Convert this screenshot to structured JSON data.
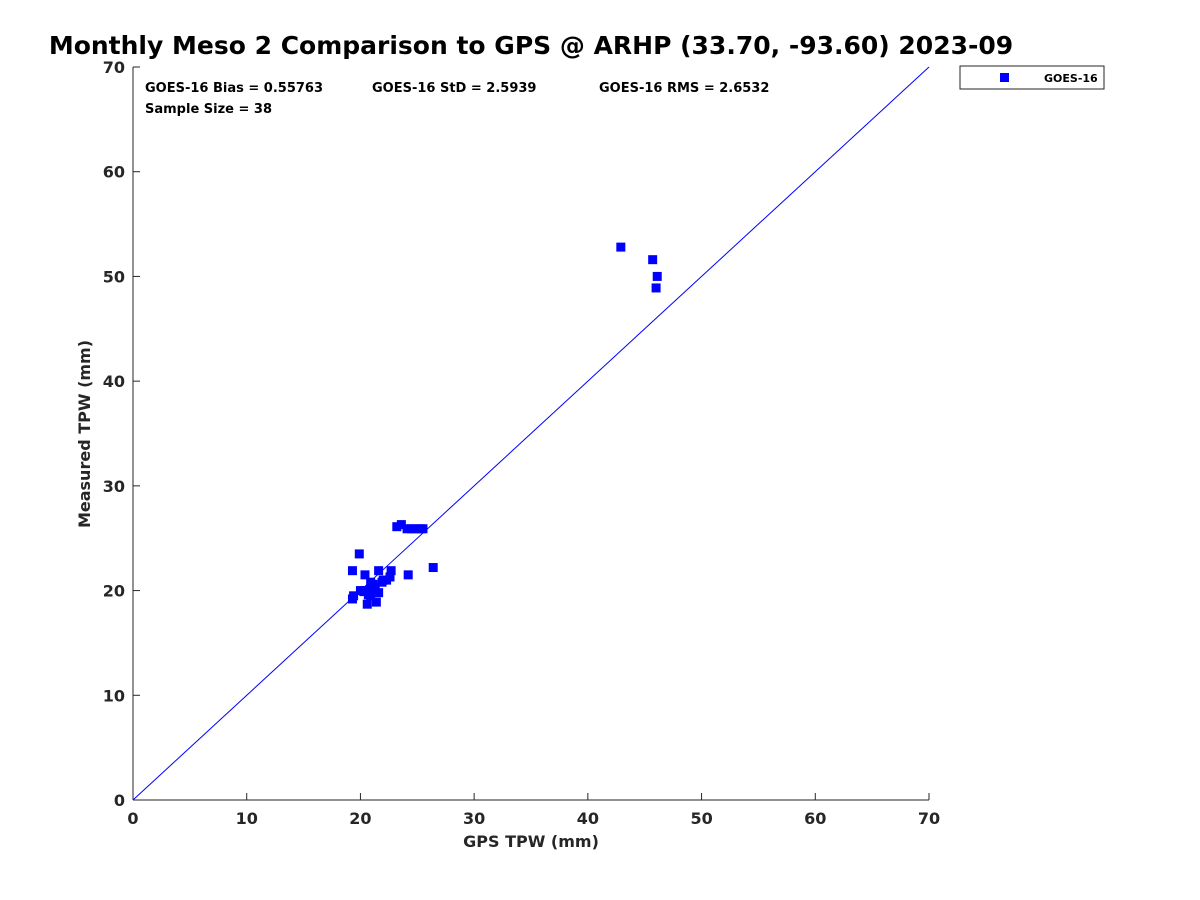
{
  "chart_data": {
    "type": "scatter",
    "title": "Monthly Meso 2 Comparison to GPS @ ARHP (33.70, -93.60) 2023-09",
    "xlabel": "GPS TPW (mm)",
    "ylabel": "Measured TPW (mm)",
    "xlim": [
      0,
      70
    ],
    "ylim": [
      0,
      70
    ],
    "xticks": [
      "0",
      "10",
      "20",
      "30",
      "40",
      "50",
      "60",
      "70"
    ],
    "yticks": [
      "0",
      "10",
      "20",
      "30",
      "40",
      "50",
      "60",
      "70"
    ],
    "grid": false,
    "legend": "top-right (outside)",
    "stats": {
      "bias": "GOES-16 Bias = 0.55763",
      "std": "GOES-16 StD = 2.5939",
      "rms": "GOES-16 RMS = 2.6532",
      "sample_size": "Sample Size = 38"
    },
    "reference_line": {
      "x": [
        0,
        70
      ],
      "y": [
        0,
        70
      ],
      "color": "#0000ff"
    },
    "series": [
      {
        "name": "GOES-16",
        "color": "#0000ff",
        "marker": "square",
        "x": [
          42.9,
          45.7,
          46.1,
          46.0,
          23.2,
          23.6,
          24.1,
          24.5,
          24.9,
          25.3,
          25.5,
          19.9,
          19.3,
          20.4,
          21.6,
          22.7,
          26.4,
          24.2,
          20.9,
          22.6,
          21.9,
          21.2,
          20.6,
          20.0,
          19.4,
          19.3,
          20.9,
          21.6,
          20.6,
          21.4,
          20.7,
          21.0,
          20.4,
          21.1,
          20.3,
          21.3,
          22.3,
          22.0
        ],
        "y": [
          52.8,
          51.6,
          50.0,
          48.9,
          26.1,
          26.3,
          25.9,
          25.9,
          25.9,
          25.9,
          25.9,
          23.5,
          21.9,
          21.5,
          21.9,
          21.9,
          22.2,
          21.5,
          20.8,
          21.3,
          20.8,
          20.2,
          20.0,
          20.0,
          19.5,
          19.2,
          19.5,
          19.8,
          18.7,
          18.9,
          19.6,
          20.2,
          20.0,
          20.6,
          19.9,
          20.3,
          21.0,
          21.0
        ]
      }
    ]
  }
}
